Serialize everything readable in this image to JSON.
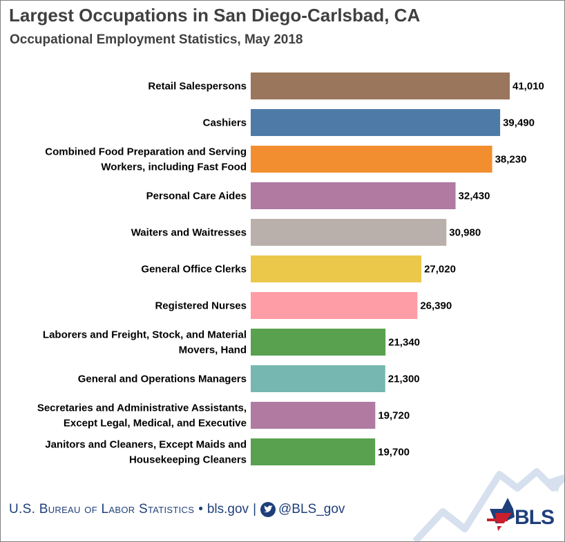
{
  "header": {
    "title": "Largest Occupations in San Diego-Carlsbad, CA",
    "subtitle": "Occupational Employment Statistics, May 2018"
  },
  "footer": {
    "agency": "U.S. Bureau of Labor Statistics",
    "bullet": "•",
    "site": "bls.gov",
    "divider": "|",
    "twitter": "@BLS_gov",
    "logo_text": "BLS"
  },
  "chart_data": {
    "type": "bar",
    "orientation": "horizontal",
    "title": "Largest Occupations in San Diego-Carlsbad, CA",
    "subtitle": "Occupational Employment Statistics, May 2018",
    "categories": [
      [
        "Retail Salespersons"
      ],
      [
        "Cashiers"
      ],
      [
        "Combined Food Preparation and Serving",
        "Workers, including Fast Food"
      ],
      [
        "Personal Care Aides"
      ],
      [
        "Waiters and Waitresses"
      ],
      [
        "General Office Clerks"
      ],
      [
        "Registered Nurses"
      ],
      [
        "Laborers and Freight, Stock, and Material",
        "Movers, Hand"
      ],
      [
        "General and Operations Managers"
      ],
      [
        "Secretaries and Administrative Assistants,",
        "Except Legal, Medical, and Executive"
      ],
      [
        "Janitors and Cleaners, Except Maids and",
        "Housekeeping Cleaners"
      ]
    ],
    "values": [
      41010,
      39490,
      38230,
      32430,
      30980,
      27020,
      26390,
      21340,
      21300,
      19720,
      19700
    ],
    "value_labels": [
      "41,010",
      "39,490",
      "38,230",
      "32,430",
      "30,980",
      "27,020",
      "26,390",
      "21,340",
      "21,300",
      "19,720",
      "19,700"
    ],
    "colors": [
      "#9a765c",
      "#4e7aa8",
      "#f28e2f",
      "#b07aa1",
      "#bab0ab",
      "#ebc84a",
      "#ff9da7",
      "#59a14f",
      "#76b7b2",
      "#b07aa1",
      "#59a14f"
    ],
    "xlim": [
      0,
      41010
    ],
    "grid": false,
    "legend": "none"
  }
}
